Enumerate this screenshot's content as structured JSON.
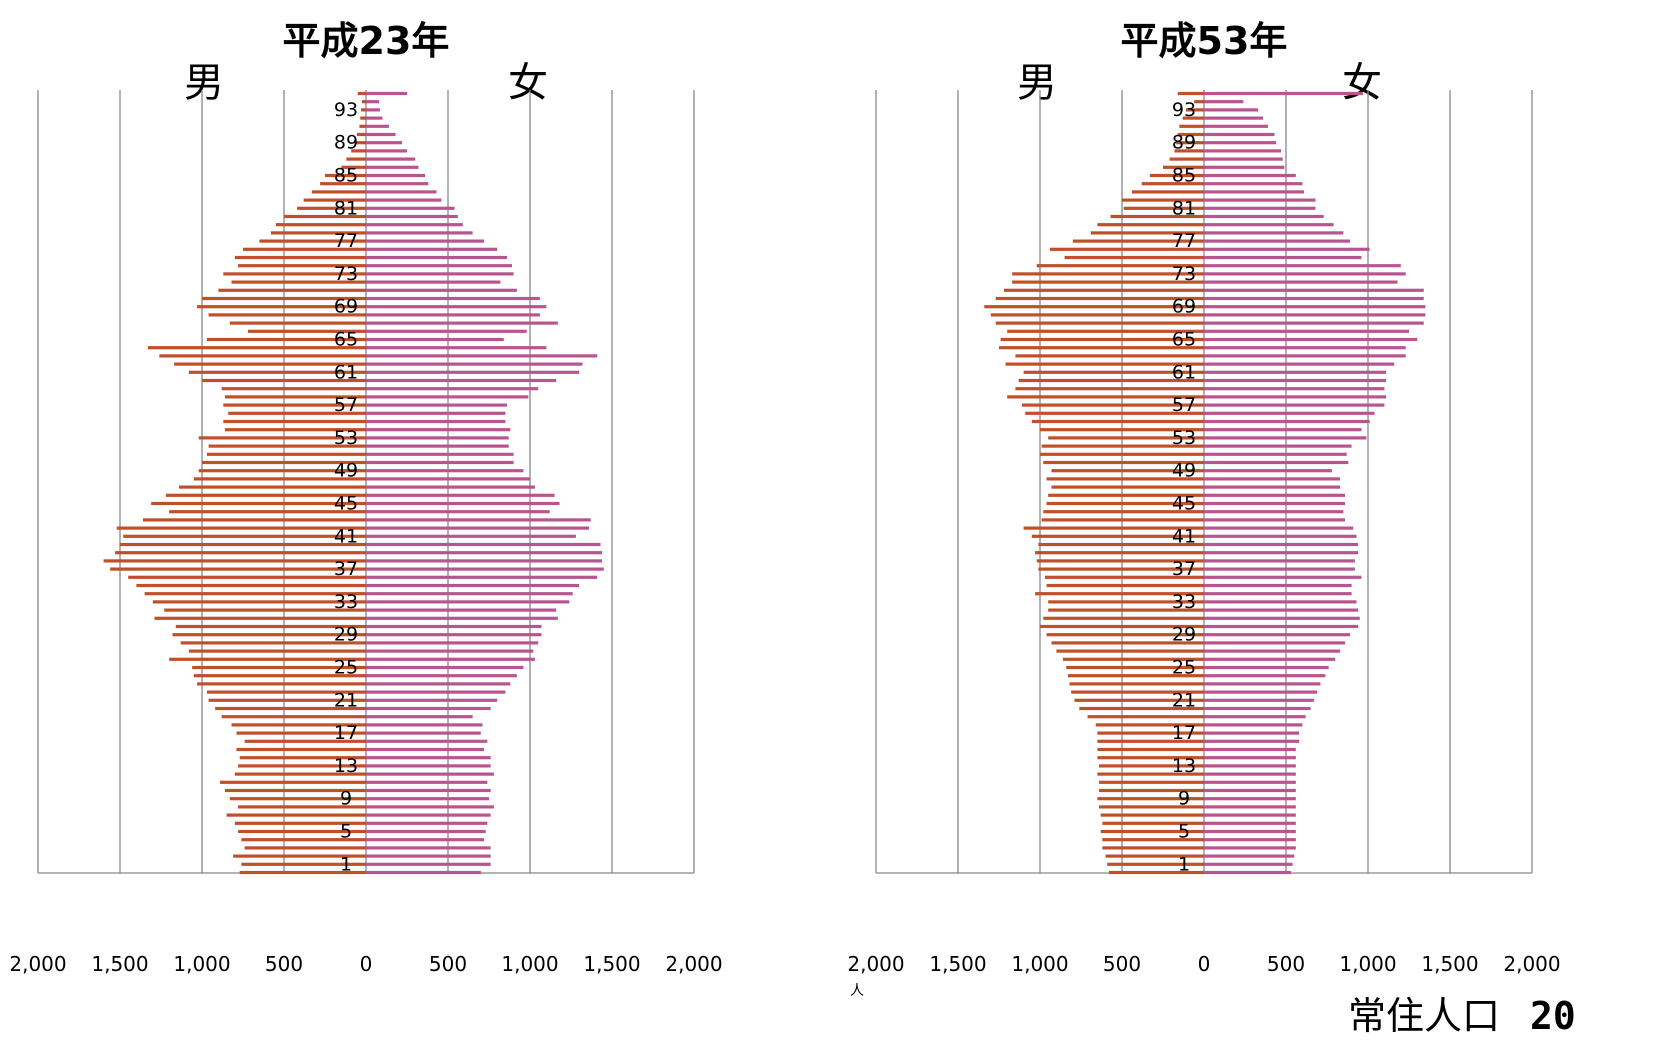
{
  "chart_data": [
    {
      "type": "bar",
      "title": "平成23年",
      "left_label": "男",
      "right_label": "女",
      "xlim": [
        -2000,
        2000
      ],
      "x_ticks": [
        "2,000",
        "1,500",
        "1,000",
        "500",
        "0",
        "500",
        "1,000",
        "1,500",
        "2,000"
      ],
      "age_labels": [
        "93",
        "89",
        "85",
        "81",
        "77",
        "73",
        "69",
        "65",
        "61",
        "57",
        "53",
        "49",
        "45",
        "41",
        "37",
        "33",
        "29",
        "25",
        "21",
        "17",
        "13",
        "9",
        "5",
        "1"
      ],
      "ages": [
        95,
        94,
        93,
        92,
        91,
        90,
        89,
        88,
        87,
        86,
        85,
        84,
        83,
        82,
        81,
        80,
        79,
        78,
        77,
        76,
        75,
        74,
        73,
        72,
        71,
        70,
        69,
        68,
        67,
        66,
        65,
        64,
        63,
        62,
        61,
        60,
        59,
        58,
        57,
        56,
        55,
        54,
        53,
        52,
        51,
        50,
        49,
        48,
        47,
        46,
        45,
        44,
        43,
        42,
        41,
        40,
        39,
        38,
        37,
        36,
        35,
        34,
        33,
        32,
        31,
        30,
        29,
        28,
        27,
        26,
        25,
        24,
        23,
        22,
        21,
        20,
        19,
        18,
        17,
        16,
        15,
        14,
        13,
        12,
        11,
        10,
        9,
        8,
        7,
        6,
        5,
        4,
        3,
        2,
        1,
        0
      ],
      "series": [
        {
          "name": "男",
          "color": "#c0502a",
          "values": [
            50,
            25,
            30,
            35,
            40,
            55,
            70,
            90,
            120,
            150,
            250,
            280,
            330,
            380,
            420,
            500,
            550,
            580,
            650,
            750,
            800,
            780,
            870,
            820,
            900,
            1000,
            1030,
            960,
            830,
            720,
            970,
            1330,
            1260,
            1170,
            1080,
            1000,
            880,
            860,
            870,
            840,
            870,
            860,
            1020,
            960,
            970,
            1000,
            1020,
            1050,
            1140,
            1220,
            1310,
            1200,
            1360,
            1520,
            1480,
            1500,
            1530,
            1600,
            1560,
            1450,
            1400,
            1350,
            1300,
            1230,
            1290,
            1160,
            1180,
            1130,
            1080,
            1200,
            1060,
            1050,
            1030,
            970,
            960,
            920,
            880,
            820,
            790,
            740,
            790,
            770,
            780,
            800,
            890,
            860,
            830,
            780,
            850,
            800,
            780,
            760,
            740,
            810,
            760,
            770,
            730
          ]
        },
        {
          "name": "女",
          "color": "#b8558f",
          "values": [
            250,
            80,
            85,
            100,
            140,
            180,
            220,
            250,
            300,
            320,
            360,
            380,
            430,
            460,
            540,
            560,
            590,
            650,
            720,
            800,
            860,
            890,
            900,
            820,
            920,
            1060,
            1100,
            1060,
            1170,
            980,
            840,
            1100,
            1410,
            1320,
            1300,
            1160,
            1050,
            990,
            860,
            850,
            850,
            880,
            870,
            870,
            900,
            900,
            960,
            1000,
            1030,
            1150,
            1180,
            1120,
            1370,
            1360,
            1280,
            1430,
            1440,
            1440,
            1450,
            1410,
            1300,
            1260,
            1240,
            1160,
            1170,
            1070,
            1070,
            1050,
            1020,
            1030,
            960,
            920,
            880,
            850,
            800,
            760,
            650,
            710,
            700,
            740,
            720,
            760,
            760,
            780,
            740,
            760,
            750,
            780,
            760,
            740,
            730,
            720,
            760,
            760,
            760,
            700
          ]
        }
      ]
    },
    {
      "type": "bar",
      "title": "平成53年",
      "left_label": "男",
      "right_label": "女",
      "xlim": [
        -2000,
        2000
      ],
      "x_ticks": [
        "2,000",
        "1,500",
        "1,000",
        "500",
        "0",
        "500",
        "1,000",
        "1,500",
        "2,000"
      ],
      "age_labels": [
        "93",
        "89",
        "85",
        "81",
        "77",
        "73",
        "69",
        "65",
        "61",
        "57",
        "53",
        "49",
        "45",
        "41",
        "37",
        "33",
        "29",
        "25",
        "21",
        "17",
        "13",
        "9",
        "5",
        "1"
      ],
      "ages": [
        95,
        94,
        93,
        92,
        91,
        90,
        89,
        88,
        87,
        86,
        85,
        84,
        83,
        82,
        81,
        80,
        79,
        78,
        77,
        76,
        75,
        74,
        73,
        72,
        71,
        70,
        69,
        68,
        67,
        66,
        65,
        64,
        63,
        62,
        61,
        60,
        59,
        58,
        57,
        56,
        55,
        54,
        53,
        52,
        51,
        50,
        49,
        48,
        47,
        46,
        45,
        44,
        43,
        42,
        41,
        40,
        39,
        38,
        37,
        36,
        35,
        34,
        33,
        32,
        31,
        30,
        29,
        28,
        27,
        26,
        25,
        24,
        23,
        22,
        21,
        20,
        19,
        18,
        17,
        16,
        15,
        14,
        13,
        12,
        11,
        10,
        9,
        8,
        7,
        6,
        5,
        4,
        3,
        2,
        1,
        0
      ],
      "series": [
        {
          "name": "男",
          "color": "#c0502a",
          "values": [
            160,
            60,
            110,
            130,
            150,
            160,
            170,
            180,
            210,
            250,
            330,
            380,
            440,
            500,
            490,
            570,
            650,
            690,
            800,
            940,
            850,
            1020,
            1170,
            1170,
            1220,
            1270,
            1340,
            1300,
            1270,
            1200,
            1240,
            1250,
            1150,
            1210,
            1100,
            1130,
            1150,
            1200,
            1110,
            1090,
            1050,
            1000,
            950,
            990,
            1000,
            980,
            930,
            960,
            930,
            950,
            960,
            980,
            990,
            1100,
            1050,
            1010,
            1030,
            1020,
            1010,
            970,
            960,
            1030,
            950,
            950,
            980,
            1000,
            960,
            930,
            900,
            860,
            840,
            830,
            820,
            810,
            790,
            760,
            710,
            660,
            650,
            650,
            650,
            650,
            640,
            650,
            640,
            640,
            650,
            640,
            630,
            620,
            630,
            620,
            620,
            600,
            590,
            580
          ]
        },
        {
          "name": "女",
          "color": "#b8558f",
          "values": [
            970,
            240,
            330,
            360,
            390,
            430,
            440,
            470,
            480,
            490,
            560,
            600,
            610,
            680,
            680,
            730,
            790,
            850,
            890,
            1010,
            960,
            1200,
            1230,
            1180,
            1340,
            1340,
            1350,
            1350,
            1340,
            1250,
            1300,
            1230,
            1230,
            1160,
            1110,
            1110,
            1100,
            1110,
            1100,
            1040,
            1010,
            960,
            990,
            900,
            870,
            880,
            780,
            830,
            830,
            860,
            860,
            850,
            860,
            910,
            930,
            940,
            940,
            920,
            920,
            960,
            900,
            900,
            930,
            940,
            950,
            940,
            890,
            860,
            830,
            800,
            760,
            740,
            710,
            690,
            670,
            650,
            620,
            600,
            580,
            580,
            560,
            560,
            560,
            560,
            560,
            560,
            560,
            560,
            560,
            560,
            560,
            560,
            560,
            550,
            540,
            530
          ]
        }
      ]
    }
  ],
  "unit_label": "人",
  "footer": {
    "text": "常住人口",
    "page_number": "20"
  },
  "colors": {
    "male": "#c0502a",
    "female": "#b8558f",
    "grid": "#888888"
  }
}
